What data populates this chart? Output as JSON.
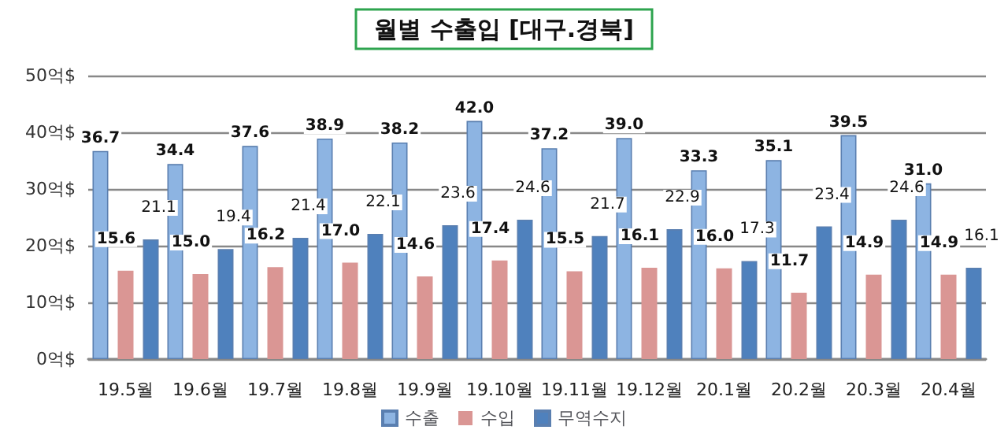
{
  "chart_data": {
    "type": "bar",
    "title": "월별 수출입 [대구.경북]",
    "categories": [
      "19.5월",
      "19.6월",
      "19.7월",
      "19.8월",
      "19.9월",
      "19.10월",
      "19.11월",
      "19.12월",
      "20.1월",
      "20.2월",
      "20.3월",
      "20.4월"
    ],
    "series": [
      {
        "name": "수출",
        "color": "#8db4e2",
        "values": [
          36.7,
          34.4,
          37.6,
          38.9,
          38.2,
          42.0,
          37.2,
          39.0,
          33.3,
          35.1,
          39.5,
          31.0
        ],
        "value_labels": [
          "36.7",
          "34.4",
          "37.6",
          "38.9",
          "38.2",
          "42.0",
          "37.2",
          "39.0",
          "33.3",
          "35.1",
          "39.5",
          "31.0"
        ]
      },
      {
        "name": "수입",
        "color": "#da9694",
        "values": [
          15.6,
          15.0,
          16.2,
          17.0,
          14.6,
          17.4,
          15.5,
          16.1,
          16.0,
          11.7,
          14.9,
          14.9
        ],
        "value_labels": [
          "15.6",
          "15.0",
          "16.2",
          "17.0",
          "14.6",
          "17.4",
          "15.5",
          "16.1",
          "16.0",
          "11.7",
          "14.9",
          "14.9"
        ]
      },
      {
        "name": "무역수지",
        "color": "#4f81bd",
        "values": [
          21.1,
          19.4,
          21.4,
          22.1,
          23.6,
          24.6,
          21.7,
          22.9,
          17.3,
          23.4,
          24.6,
          16.1
        ],
        "value_labels": [
          "21.1",
          "19.4",
          "21.4",
          "22.1",
          "23.6",
          "24.6",
          "21.7",
          "22.9",
          "17.3",
          "23.4",
          "24.6",
          "16.1"
        ]
      }
    ],
    "ylim": [
      0,
      50
    ],
    "yticks": [
      {
        "value": 0,
        "label": "0억$"
      },
      {
        "value": 10,
        "label": "10억$"
      },
      {
        "value": 20,
        "label": "20억$"
      },
      {
        "value": 30,
        "label": "30억$"
      },
      {
        "value": 40,
        "label": "40억$"
      },
      {
        "value": 50,
        "label": "50억$"
      }
    ],
    "grid": "y",
    "legend": "bottom"
  }
}
